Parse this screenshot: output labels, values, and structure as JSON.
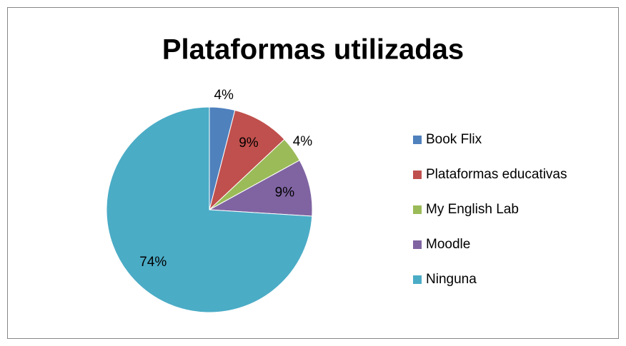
{
  "chart_data": {
    "type": "pie",
    "title": "Plataformas utilizadas",
    "categories": [
      "Book Flix",
      "Plataformas educativas",
      "My English Lab",
      "Moodle",
      "Ninguna"
    ],
    "values": [
      4,
      9,
      4,
      9,
      74
    ],
    "value_labels": [
      "4%",
      "9%",
      "4%",
      "9%",
      "74%"
    ],
    "colors": [
      "#4f81bd",
      "#c0504d",
      "#9bbb59",
      "#8064a2",
      "#4bacc6"
    ],
    "legend": "right"
  }
}
